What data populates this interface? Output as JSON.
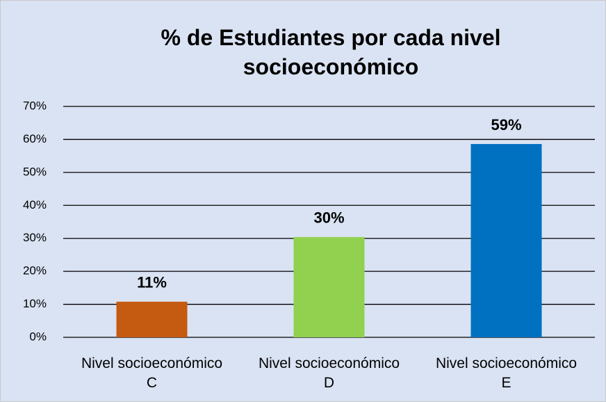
{
  "chart_data": {
    "type": "bar",
    "title": "% de Estudiantes por cada nivel socioeconómico",
    "categories": [
      "Nivel socioeconómico C",
      "Nivel socioeconómico D",
      "Nivel socioeconómico E"
    ],
    "values": [
      10.8,
      30.4,
      58.6
    ],
    "value_labels": [
      "11%",
      "30%",
      "59%"
    ],
    "colors": [
      "#c55a11",
      "#92d050",
      "#0070c0"
    ],
    "ylim": [
      0,
      70
    ],
    "yticks": [
      {
        "value": 0,
        "label": "0%"
      },
      {
        "value": 10,
        "label": "10%"
      },
      {
        "value": 20,
        "label": "20%"
      },
      {
        "value": 30,
        "label": "30%"
      },
      {
        "value": 40,
        "label": "40%"
      },
      {
        "value": 50,
        "label": "50%"
      },
      {
        "value": 60,
        "label": "60%"
      },
      {
        "value": 70,
        "label": "70%"
      }
    ],
    "grid": true
  }
}
